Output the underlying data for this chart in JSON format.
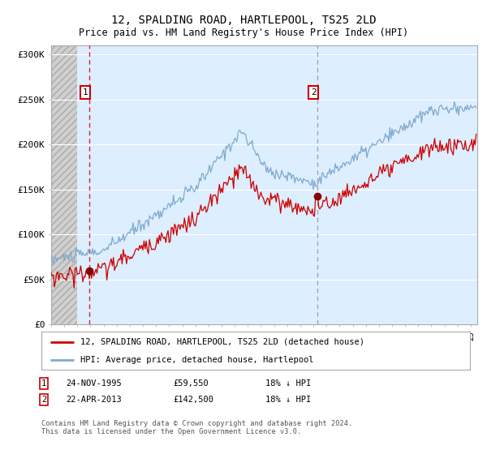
{
  "title": "12, SPALDING ROAD, HARTLEPOOL, TS25 2LD",
  "subtitle": "Price paid vs. HM Land Registry's House Price Index (HPI)",
  "hpi_label": "HPI: Average price, detached house, Hartlepool",
  "property_label": "12, SPALDING ROAD, HARTLEPOOL, TS25 2LD (detached house)",
  "sale1_date": "24-NOV-1995",
  "sale1_price": 59550,
  "sale1_hpi": "18% ↓ HPI",
  "sale2_date": "22-APR-2013",
  "sale2_price": 142500,
  "sale2_hpi": "18% ↓ HPI",
  "copyright": "Contains HM Land Registry data © Crown copyright and database right 2024.\nThis data is licensed under the Open Government Licence v3.0.",
  "red_color": "#cc0000",
  "blue_color": "#7faacc",
  "plot_bg_color": "#ddeeff",
  "hatch_color": "#c8c8c8",
  "grid_color": "#ffffff",
  "marker1_x": 1995.9,
  "marker2_x": 2013.3,
  "xlim_left": 1993.0,
  "xlim_right": 2025.5,
  "ylim_bottom": 0,
  "ylim_top": 310000
}
